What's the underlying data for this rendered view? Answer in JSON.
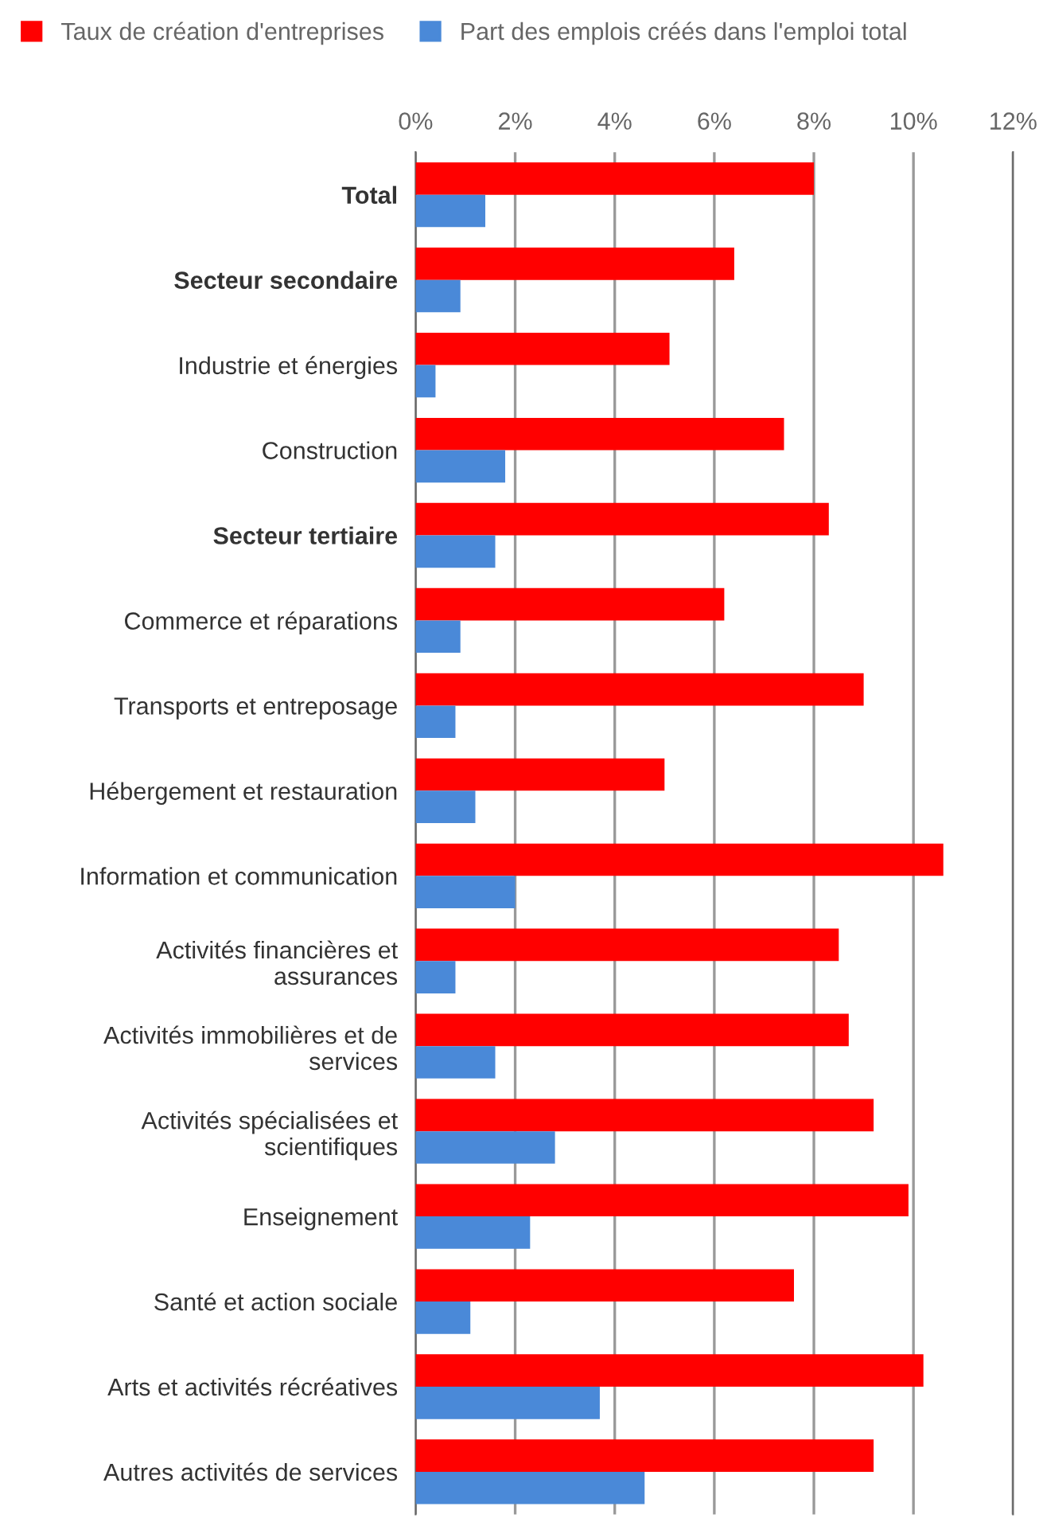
{
  "chart_data": {
    "type": "bar",
    "orientation": "horizontal",
    "categories": [
      "Total",
      "Secteur secondaire",
      "Industrie et énergies",
      "Construction",
      "Secteur tertiaire",
      "Commerce et réparations",
      "Transports et entreposage",
      "Hébergement et restauration",
      "Information et communication",
      "Activités financières et\nassurances",
      "Activités immobilières et de\nservices",
      "Activités spécialisées et\nscientifiques",
      "Enseignement",
      "Santé et action sociale",
      "Arts et activités récréatives",
      "Autres activités de services"
    ],
    "series": [
      {
        "name": "Taux de création d'entreprises",
        "color": "#ff0000",
        "values": [
          8.0,
          6.4,
          5.1,
          7.4,
          8.3,
          6.2,
          9.0,
          5.0,
          10.6,
          8.5,
          8.7,
          9.2,
          9.9,
          7.6,
          10.2,
          9.2
        ]
      },
      {
        "name": "Part des emplois créés dans l'emploi total",
        "color": "#4a89d8",
        "values": [
          1.4,
          0.9,
          0.4,
          1.8,
          1.6,
          0.9,
          0.8,
          1.2,
          2.0,
          0.8,
          1.6,
          2.8,
          2.3,
          1.1,
          3.7,
          4.6
        ]
      }
    ],
    "xlim": [
      0,
      12
    ],
    "xticks": [
      {
        "value": 0,
        "label": "0%"
      },
      {
        "value": 2,
        "label": "2%"
      },
      {
        "value": 4,
        "label": "4%"
      },
      {
        "value": 6,
        "label": "6%"
      },
      {
        "value": 8,
        "label": "8%"
      },
      {
        "value": 10,
        "label": "10%"
      },
      {
        "value": 12,
        "label": "12%"
      }
    ],
    "grid": "x",
    "legend": "top left"
  }
}
